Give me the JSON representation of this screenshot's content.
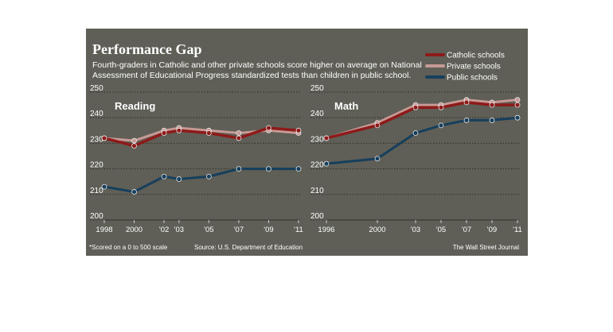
{
  "title": "Performance Gap",
  "subtitle_line1": "Fourth-graders in Catholic and other private schools score higher on average on National",
  "subtitle_line2": "Assessment of Educational Progress standardized tests  than children in public school.",
  "footnote": "*Scored on a 0 to 500 scale",
  "source": "Source: U.S. Department of Education",
  "credit": "The Wall Street Journal",
  "colors": {
    "panel_bg": "#5f5f57",
    "catholic": "#8e1a1a",
    "private": "#c79a95",
    "public": "#163f5c",
    "text": "#ffffff",
    "grid": "#2f2f2a"
  },
  "legend": {
    "placement": "top-right",
    "items": [
      {
        "label": "Catholic schools",
        "series": "catholic"
      },
      {
        "label": "Private schools",
        "series": "private"
      },
      {
        "label": "Public schools",
        "series": "public"
      }
    ]
  },
  "chart_data": [
    {
      "type": "line",
      "title": "Reading",
      "ylim": [
        200,
        250
      ],
      "yticks": [
        200,
        210,
        220,
        230,
        240,
        250
      ],
      "x": [
        1998,
        2000,
        2002,
        2003,
        2005,
        2007,
        2009,
        2011
      ],
      "xticks": [
        1998,
        2000,
        2002,
        2003,
        2005,
        2007,
        2009,
        2011
      ],
      "xtick_labels": [
        "1998",
        "2000",
        "'02",
        "'03",
        "'05",
        "'07",
        "'09",
        "'11"
      ],
      "xlim": [
        1998,
        2011
      ],
      "grid": true,
      "series": [
        {
          "name": "Private schools",
          "key": "private",
          "values": [
            232,
            231,
            235,
            236,
            235,
            234,
            235,
            234
          ]
        },
        {
          "name": "Catholic schools",
          "key": "catholic",
          "values": [
            232,
            229,
            234,
            235,
            234,
            232,
            236,
            235
          ]
        },
        {
          "name": "Public schools",
          "key": "public",
          "values": [
            213,
            211,
            217,
            216,
            217,
            220,
            220,
            220
          ]
        }
      ]
    },
    {
      "type": "line",
      "title": "Math",
      "ylim": [
        200,
        250
      ],
      "yticks": [
        200,
        210,
        220,
        230,
        240,
        250
      ],
      "x": [
        1996,
        2000,
        2003,
        2005,
        2007,
        2009,
        2011
      ],
      "xticks": [
        1996,
        2000,
        2003,
        2005,
        2007,
        2009,
        2011
      ],
      "xtick_labels": [
        "1996",
        "2000",
        "'03",
        "'05",
        "'07",
        "'09",
        "'11"
      ],
      "xlim": [
        1996,
        2011
      ],
      "grid": true,
      "series": [
        {
          "name": "Private schools",
          "key": "private",
          "values": [
            232,
            238,
            245,
            245,
            247,
            246,
            247
          ]
        },
        {
          "name": "Catholic schools",
          "key": "catholic",
          "values": [
            232,
            237,
            244,
            244,
            246,
            245,
            245
          ]
        },
        {
          "name": "Public schools",
          "key": "public",
          "values": [
            222,
            224,
            234,
            237,
            239,
            239,
            240
          ]
        }
      ]
    }
  ]
}
